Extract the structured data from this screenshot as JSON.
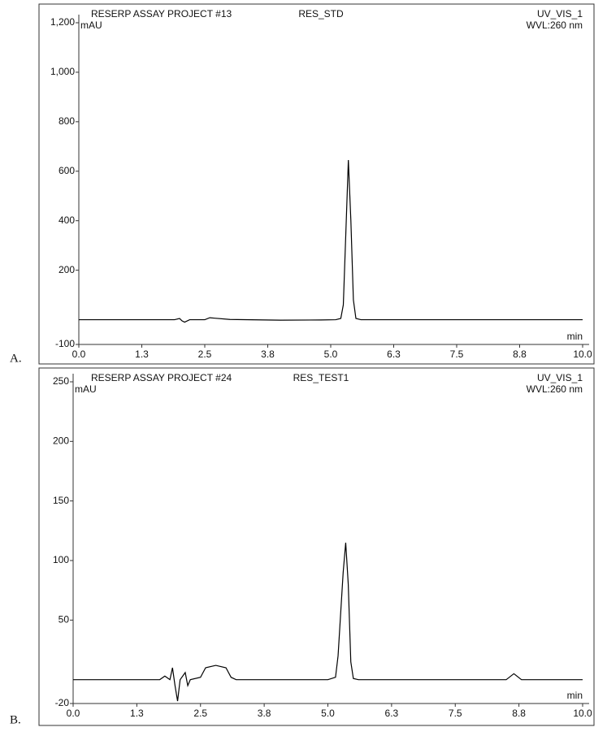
{
  "chart_data": [
    {
      "type": "line",
      "title": "RESERP ASSAY PROJECT #13",
      "sample": "RES_STD",
      "channel": "UV_VIS_1",
      "wavelength": "WVL:260 nm",
      "ylabel": "mAU",
      "xlabel": "min",
      "panel_label": "A.",
      "color": "#000000",
      "x": [
        0,
        1.0,
        1.9,
        2.0,
        2.05,
        2.1,
        2.2,
        2.5,
        2.6,
        2.7,
        3.0,
        4.0,
        4.8,
        5.1,
        5.2,
        5.25,
        5.3,
        5.35,
        5.4,
        5.45,
        5.5,
        5.6,
        7.0,
        10.0
      ],
      "values": [
        0,
        0,
        0,
        5,
        -5,
        -10,
        0,
        0,
        8,
        6,
        1,
        -2,
        -1,
        0,
        5,
        60,
        350,
        645,
        400,
        80,
        5,
        0,
        0,
        0
      ],
      "xlim": [
        0,
        10
      ],
      "ylim": [
        -100,
        1200
      ],
      "xticks": [
        {
          "value": 0,
          "label": "0.0"
        },
        {
          "value": 1.25,
          "label": "1.3"
        },
        2.5,
        {
          "value": 3.75,
          "label": "3.8"
        },
        {
          "value": 5,
          "label": "5.0"
        },
        {
          "value": 6.25,
          "label": "6.3"
        },
        7.5,
        {
          "value": 8.75,
          "label": "8.8"
        },
        {
          "value": 10,
          "label": "10.0"
        }
      ],
      "yticks": [
        -100,
        200,
        400,
        600,
        800,
        {
          "value": 1000,
          "label": "1,000"
        },
        {
          "value": 1200,
          "label": "1,200"
        }
      ]
    },
    {
      "type": "line",
      "title": "RESERP ASSAY PROJECT #24",
      "sample": "RES_TEST1",
      "channel": "UV_VIS_1",
      "wavelength": "WVL:260 nm",
      "ylabel": "mAU",
      "xlabel": "min",
      "panel_label": "B.",
      "color": "#000000",
      "x": [
        0,
        1.7,
        1.8,
        1.9,
        1.95,
        2.0,
        2.05,
        2.1,
        2.2,
        2.25,
        2.3,
        2.5,
        2.6,
        2.8,
        3.0,
        3.1,
        3.2,
        5.0,
        5.15,
        5.2,
        5.3,
        5.35,
        5.4,
        5.45,
        5.5,
        5.6,
        8.5,
        8.65,
        8.8,
        10.0
      ],
      "values": [
        0,
        0,
        3,
        0,
        10,
        -5,
        -18,
        0,
        6,
        -5,
        0,
        2,
        10,
        12,
        10,
        2,
        0,
        0,
        2,
        20,
        90,
        115,
        80,
        15,
        1,
        0,
        0,
        5,
        0,
        0
      ],
      "xlim": [
        0,
        10
      ],
      "ylim": [
        -20,
        250
      ],
      "xticks": [
        {
          "value": 0,
          "label": "0.0"
        },
        {
          "value": 1.25,
          "label": "1.3"
        },
        2.5,
        {
          "value": 3.75,
          "label": "3.8"
        },
        {
          "value": 5,
          "label": "5.0"
        },
        {
          "value": 6.25,
          "label": "6.3"
        },
        7.5,
        {
          "value": 8.75,
          "label": "8.8"
        },
        {
          "value": 10,
          "label": "10.0"
        }
      ],
      "yticks": [
        -20,
        50,
        100,
        150,
        200,
        250
      ]
    }
  ]
}
